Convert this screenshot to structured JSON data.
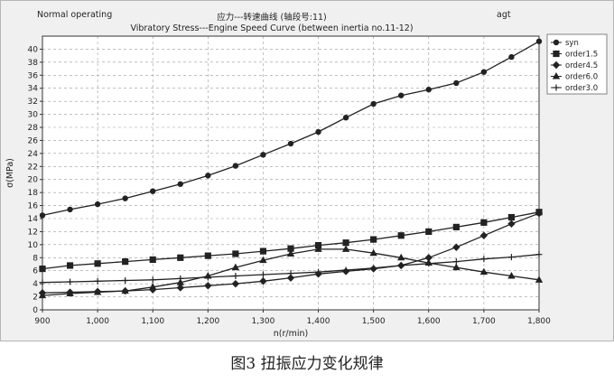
{
  "header": {
    "status": "Normal operating",
    "title": "应力---转速曲线 (轴段号:11)",
    "subtitle": "Vibratory Stress---Engine Speed Curve (between inertia no.11-12)",
    "code": "agt"
  },
  "caption": "图3  扭振应力变化规律",
  "chart_data": {
    "type": "line",
    "xlabel": "n(r/min)",
    "ylabel": "σ(MPa)",
    "xlim": [
      900,
      1800
    ],
    "ylim": [
      0,
      42
    ],
    "grid": true,
    "legend_position": "top-right",
    "x_ticks": [
      "900",
      "1,000",
      "1,100",
      "1,200",
      "1,300",
      "1,400",
      "1,500",
      "1,600",
      "1,700",
      "1,800"
    ],
    "y_ticks": [
      "0",
      "2",
      "4",
      "6",
      "8",
      "10",
      "12",
      "14",
      "16",
      "18",
      "20",
      "22",
      "24",
      "26",
      "28",
      "30",
      "32",
      "34",
      "36",
      "38",
      "40"
    ],
    "series": [
      {
        "name": "syn",
        "marker": "circle",
        "points": [
          [
            900,
            14.5
          ],
          [
            950,
            15.4
          ],
          [
            1000,
            16.2
          ],
          [
            1050,
            17.1
          ],
          [
            1100,
            18.2
          ],
          [
            1150,
            19.3
          ],
          [
            1200,
            20.6
          ],
          [
            1250,
            22.1
          ],
          [
            1300,
            23.8
          ],
          [
            1350,
            25.5
          ],
          [
            1400,
            27.3
          ],
          [
            1450,
            29.5
          ],
          [
            1500,
            31.6
          ],
          [
            1550,
            32.9
          ],
          [
            1600,
            33.8
          ],
          [
            1650,
            34.8
          ],
          [
            1700,
            36.5
          ],
          [
            1750,
            38.8
          ],
          [
            1800,
            41.2
          ]
        ]
      },
      {
        "name": "order1.5",
        "marker": "square",
        "points": [
          [
            900,
            6.3
          ],
          [
            950,
            6.8
          ],
          [
            1000,
            7.1
          ],
          [
            1050,
            7.4
          ],
          [
            1100,
            7.7
          ],
          [
            1150,
            8.0
          ],
          [
            1200,
            8.3
          ],
          [
            1250,
            8.6
          ],
          [
            1300,
            9.0
          ],
          [
            1350,
            9.4
          ],
          [
            1400,
            9.9
          ],
          [
            1450,
            10.3
          ],
          [
            1500,
            10.8
          ],
          [
            1550,
            11.4
          ],
          [
            1600,
            12.0
          ],
          [
            1650,
            12.7
          ],
          [
            1700,
            13.4
          ],
          [
            1750,
            14.2
          ],
          [
            1800,
            15.0
          ]
        ]
      },
      {
        "name": "order4.5",
        "marker": "diamond",
        "points": [
          [
            900,
            2.6
          ],
          [
            950,
            2.7
          ],
          [
            1000,
            2.8
          ],
          [
            1050,
            2.9
          ],
          [
            1100,
            3.1
          ],
          [
            1150,
            3.4
          ],
          [
            1200,
            3.7
          ],
          [
            1250,
            4.0
          ],
          [
            1300,
            4.4
          ],
          [
            1350,
            4.9
          ],
          [
            1400,
            5.5
          ],
          [
            1450,
            5.9
          ],
          [
            1500,
            6.3
          ],
          [
            1550,
            6.8
          ],
          [
            1600,
            8.0
          ],
          [
            1650,
            9.6
          ],
          [
            1700,
            11.4
          ],
          [
            1750,
            13.2
          ],
          [
            1800,
            14.8
          ]
        ]
      },
      {
        "name": "order6.0",
        "marker": "triangle",
        "points": [
          [
            900,
            2.2
          ],
          [
            950,
            2.5
          ],
          [
            1000,
            2.7
          ],
          [
            1050,
            2.9
          ],
          [
            1100,
            3.5
          ],
          [
            1150,
            4.2
          ],
          [
            1200,
            5.2
          ],
          [
            1250,
            6.5
          ],
          [
            1300,
            7.6
          ],
          [
            1350,
            8.6
          ],
          [
            1400,
            9.3
          ],
          [
            1450,
            9.3
          ],
          [
            1500,
            8.7
          ],
          [
            1550,
            8.0
          ],
          [
            1600,
            7.2
          ],
          [
            1650,
            6.5
          ],
          [
            1700,
            5.8
          ],
          [
            1750,
            5.2
          ],
          [
            1800,
            4.6
          ]
        ]
      },
      {
        "name": "order3.0",
        "marker": "plus",
        "points": [
          [
            900,
            4.2
          ],
          [
            950,
            4.3
          ],
          [
            1000,
            4.4
          ],
          [
            1050,
            4.5
          ],
          [
            1100,
            4.6
          ],
          [
            1150,
            4.8
          ],
          [
            1200,
            5.0
          ],
          [
            1250,
            5.2
          ],
          [
            1300,
            5.4
          ],
          [
            1350,
            5.6
          ],
          [
            1400,
            5.8
          ],
          [
            1450,
            6.1
          ],
          [
            1500,
            6.4
          ],
          [
            1550,
            6.8
          ],
          [
            1600,
            7.1
          ],
          [
            1650,
            7.4
          ],
          [
            1700,
            7.8
          ],
          [
            1750,
            8.1
          ],
          [
            1800,
            8.5
          ]
        ]
      }
    ]
  }
}
